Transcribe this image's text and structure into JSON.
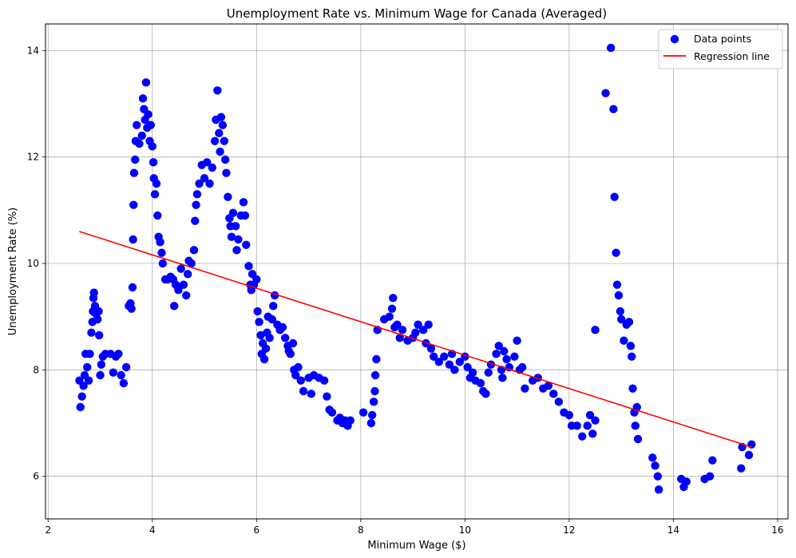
{
  "chart_data": {
    "type": "scatter",
    "title": "Unemployment Rate vs. Minimum Wage for Canada (Averaged)",
    "xlabel": "Minimum Wage ($)",
    "ylabel": "Unemployment Rate (%)",
    "xlim": [
      1.95,
      16.2
    ],
    "ylim": [
      5.2,
      14.5
    ],
    "xticks": [
      2,
      4,
      6,
      8,
      10,
      12,
      14,
      16
    ],
    "yticks": [
      6,
      8,
      10,
      12,
      14
    ],
    "grid": true,
    "legend_position": "top-right",
    "legend": [
      "Data points",
      "Regression line"
    ],
    "colors": {
      "points": "#0000ff",
      "line": "#ff0000"
    },
    "series": [
      {
        "name": "Data points",
        "kind": "scatter",
        "points": [
          [
            2.6,
            7.8
          ],
          [
            2.62,
            7.3
          ],
          [
            2.65,
            7.5
          ],
          [
            2.68,
            7.7
          ],
          [
            2.7,
            7.9
          ],
          [
            2.72,
            8.3
          ],
          [
            2.75,
            8.05
          ],
          [
            2.78,
            7.8
          ],
          [
            2.8,
            8.3
          ],
          [
            2.83,
            8.7
          ],
          [
            2.85,
            8.9
          ],
          [
            2.86,
            9.1
          ],
          [
            2.87,
            9.35
          ],
          [
            2.88,
            9.45
          ],
          [
            2.9,
            9.2
          ],
          [
            2.92,
            9.05
          ],
          [
            2.95,
            8.95
          ],
          [
            2.97,
            9.1
          ],
          [
            2.98,
            8.65
          ],
          [
            3.0,
            7.9
          ],
          [
            3.02,
            8.1
          ],
          [
            3.05,
            8.25
          ],
          [
            3.1,
            8.3
          ],
          [
            3.2,
            8.3
          ],
          [
            3.25,
            7.95
          ],
          [
            3.3,
            8.25
          ],
          [
            3.35,
            8.3
          ],
          [
            3.4,
            7.9
          ],
          [
            3.45,
            7.75
          ],
          [
            3.5,
            8.05
          ],
          [
            3.55,
            9.2
          ],
          [
            3.58,
            9.25
          ],
          [
            3.6,
            9.15
          ],
          [
            3.62,
            9.55
          ],
          [
            3.63,
            10.45
          ],
          [
            3.64,
            11.1
          ],
          [
            3.65,
            11.7
          ],
          [
            3.67,
            11.95
          ],
          [
            3.68,
            12.3
          ],
          [
            3.7,
            12.6
          ],
          [
            3.75,
            12.25
          ],
          [
            3.8,
            12.4
          ],
          [
            3.82,
            13.1
          ],
          [
            3.84,
            12.9
          ],
          [
            3.86,
            12.7
          ],
          [
            3.88,
            13.4
          ],
          [
            3.9,
            12.55
          ],
          [
            3.92,
            12.8
          ],
          [
            3.95,
            12.3
          ],
          [
            3.97,
            12.6
          ],
          [
            4.0,
            12.2
          ],
          [
            4.02,
            11.9
          ],
          [
            4.03,
            11.6
          ],
          [
            4.05,
            11.3
          ],
          [
            4.08,
            11.5
          ],
          [
            4.1,
            10.9
          ],
          [
            4.12,
            10.5
          ],
          [
            4.15,
            10.4
          ],
          [
            4.18,
            10.2
          ],
          [
            4.2,
            10.0
          ],
          [
            4.25,
            9.7
          ],
          [
            4.3,
            9.7
          ],
          [
            4.35,
            9.75
          ],
          [
            4.4,
            9.7
          ],
          [
            4.42,
            9.2
          ],
          [
            4.45,
            9.6
          ],
          [
            4.5,
            9.5
          ],
          [
            4.55,
            9.9
          ],
          [
            4.6,
            9.6
          ],
          [
            4.65,
            9.4
          ],
          [
            4.68,
            9.8
          ],
          [
            4.7,
            10.05
          ],
          [
            4.75,
            10.0
          ],
          [
            4.8,
            10.25
          ],
          [
            4.82,
            10.8
          ],
          [
            4.84,
            11.1
          ],
          [
            4.86,
            11.3
          ],
          [
            4.9,
            11.5
          ],
          [
            4.95,
            11.85
          ],
          [
            5.0,
            11.6
          ],
          [
            5.05,
            11.9
          ],
          [
            5.1,
            11.5
          ],
          [
            5.15,
            11.8
          ],
          [
            5.2,
            12.3
          ],
          [
            5.22,
            12.7
          ],
          [
            5.25,
            13.25
          ],
          [
            5.28,
            12.45
          ],
          [
            5.3,
            12.1
          ],
          [
            5.32,
            12.75
          ],
          [
            5.35,
            12.6
          ],
          [
            5.38,
            12.3
          ],
          [
            5.4,
            11.95
          ],
          [
            5.42,
            11.7
          ],
          [
            5.45,
            11.25
          ],
          [
            5.48,
            10.85
          ],
          [
            5.5,
            10.7
          ],
          [
            5.52,
            10.5
          ],
          [
            5.55,
            10.95
          ],
          [
            5.6,
            10.7
          ],
          [
            5.62,
            10.25
          ],
          [
            5.65,
            10.45
          ],
          [
            5.7,
            10.9
          ],
          [
            5.75,
            11.15
          ],
          [
            5.78,
            10.9
          ],
          [
            5.8,
            10.35
          ],
          [
            5.85,
            9.95
          ],
          [
            5.88,
            9.6
          ],
          [
            5.9,
            9.5
          ],
          [
            5.92,
            9.8
          ],
          [
            5.95,
            9.6
          ],
          [
            6.0,
            9.7
          ],
          [
            6.02,
            9.1
          ],
          [
            6.05,
            8.9
          ],
          [
            6.08,
            8.65
          ],
          [
            6.1,
            8.3
          ],
          [
            6.12,
            8.5
          ],
          [
            6.15,
            8.2
          ],
          [
            6.18,
            8.4
          ],
          [
            6.2,
            8.7
          ],
          [
            6.22,
            9.0
          ],
          [
            6.25,
            8.6
          ],
          [
            6.3,
            8.95
          ],
          [
            6.32,
            9.2
          ],
          [
            6.35,
            9.4
          ],
          [
            6.4,
            8.85
          ],
          [
            6.45,
            8.75
          ],
          [
            6.5,
            8.8
          ],
          [
            6.55,
            8.6
          ],
          [
            6.6,
            8.45
          ],
          [
            6.62,
            8.35
          ],
          [
            6.65,
            8.3
          ],
          [
            6.7,
            8.5
          ],
          [
            6.72,
            8.0
          ],
          [
            6.75,
            7.9
          ],
          [
            6.8,
            8.05
          ],
          [
            6.85,
            7.8
          ],
          [
            6.9,
            7.6
          ],
          [
            7.0,
            7.85
          ],
          [
            7.05,
            7.55
          ],
          [
            7.1,
            7.9
          ],
          [
            7.2,
            7.85
          ],
          [
            7.3,
            7.8
          ],
          [
            7.35,
            7.5
          ],
          [
            7.4,
            7.25
          ],
          [
            7.45,
            7.2
          ],
          [
            7.55,
            7.05
          ],
          [
            7.6,
            7.1
          ],
          [
            7.65,
            7.0
          ],
          [
            7.7,
            7.05
          ],
          [
            7.75,
            6.95
          ],
          [
            7.8,
            7.05
          ],
          [
            8.05,
            7.2
          ],
          [
            8.2,
            7.0
          ],
          [
            8.22,
            7.15
          ],
          [
            8.25,
            7.4
          ],
          [
            8.27,
            7.6
          ],
          [
            8.28,
            7.9
          ],
          [
            8.3,
            8.2
          ],
          [
            8.32,
            8.75
          ],
          [
            8.45,
            8.95
          ],
          [
            8.55,
            9.0
          ],
          [
            8.6,
            9.15
          ],
          [
            8.62,
            9.35
          ],
          [
            8.65,
            8.8
          ],
          [
            8.7,
            8.85
          ],
          [
            8.75,
            8.6
          ],
          [
            8.8,
            8.75
          ],
          [
            8.9,
            8.55
          ],
          [
            9.0,
            8.6
          ],
          [
            9.05,
            8.7
          ],
          [
            9.1,
            8.85
          ],
          [
            9.2,
            8.75
          ],
          [
            9.25,
            8.5
          ],
          [
            9.3,
            8.85
          ],
          [
            9.35,
            8.4
          ],
          [
            9.4,
            8.25
          ],
          [
            9.5,
            8.15
          ],
          [
            9.6,
            8.25
          ],
          [
            9.7,
            8.1
          ],
          [
            9.75,
            8.3
          ],
          [
            9.8,
            8.0
          ],
          [
            9.9,
            8.15
          ],
          [
            10.0,
            8.25
          ],
          [
            10.05,
            8.05
          ],
          [
            10.1,
            7.85
          ],
          [
            10.15,
            7.95
          ],
          [
            10.2,
            7.8
          ],
          [
            10.3,
            7.75
          ],
          [
            10.35,
            7.6
          ],
          [
            10.4,
            7.55
          ],
          [
            10.45,
            7.95
          ],
          [
            10.5,
            8.1
          ],
          [
            10.6,
            8.3
          ],
          [
            10.65,
            8.45
          ],
          [
            10.7,
            8.0
          ],
          [
            10.72,
            7.85
          ],
          [
            10.75,
            8.35
          ],
          [
            10.8,
            8.2
          ],
          [
            10.85,
            8.05
          ],
          [
            10.95,
            8.25
          ],
          [
            11.0,
            8.55
          ],
          [
            11.05,
            8.0
          ],
          [
            11.1,
            8.05
          ],
          [
            11.15,
            7.65
          ],
          [
            11.3,
            7.8
          ],
          [
            11.4,
            7.85
          ],
          [
            11.5,
            7.65
          ],
          [
            11.6,
            7.7
          ],
          [
            11.7,
            7.55
          ],
          [
            11.8,
            7.4
          ],
          [
            11.9,
            7.2
          ],
          [
            12.0,
            7.15
          ],
          [
            12.05,
            6.95
          ],
          [
            12.15,
            6.95
          ],
          [
            12.25,
            6.75
          ],
          [
            12.35,
            6.95
          ],
          [
            12.4,
            7.15
          ],
          [
            12.45,
            6.8
          ],
          [
            12.5,
            7.05
          ],
          [
            12.5,
            8.75
          ],
          [
            12.7,
            13.2
          ],
          [
            12.8,
            14.05
          ],
          [
            12.85,
            12.9
          ],
          [
            12.87,
            11.25
          ],
          [
            12.9,
            10.2
          ],
          [
            12.92,
            9.6
          ],
          [
            12.95,
            9.4
          ],
          [
            12.98,
            9.1
          ],
          [
            13.0,
            8.95
          ],
          [
            13.05,
            8.55
          ],
          [
            13.1,
            8.85
          ],
          [
            13.15,
            8.9
          ],
          [
            13.18,
            8.45
          ],
          [
            13.2,
            8.25
          ],
          [
            13.22,
            7.65
          ],
          [
            13.25,
            7.2
          ],
          [
            13.27,
            6.95
          ],
          [
            13.3,
            7.3
          ],
          [
            13.32,
            6.7
          ],
          [
            13.6,
            6.35
          ],
          [
            13.65,
            6.2
          ],
          [
            13.7,
            6.0
          ],
          [
            13.72,
            5.75
          ],
          [
            14.15,
            5.95
          ],
          [
            14.2,
            5.8
          ],
          [
            14.25,
            5.9
          ],
          [
            14.6,
            5.95
          ],
          [
            14.7,
            6.0
          ],
          [
            14.75,
            6.3
          ],
          [
            15.3,
            6.15
          ],
          [
            15.32,
            6.55
          ],
          [
            15.45,
            6.4
          ],
          [
            15.5,
            6.6
          ]
        ]
      },
      {
        "name": "Regression line",
        "kind": "line",
        "x": [
          2.6,
          15.5
        ],
        "y": [
          10.6,
          6.55
        ]
      }
    ]
  }
}
